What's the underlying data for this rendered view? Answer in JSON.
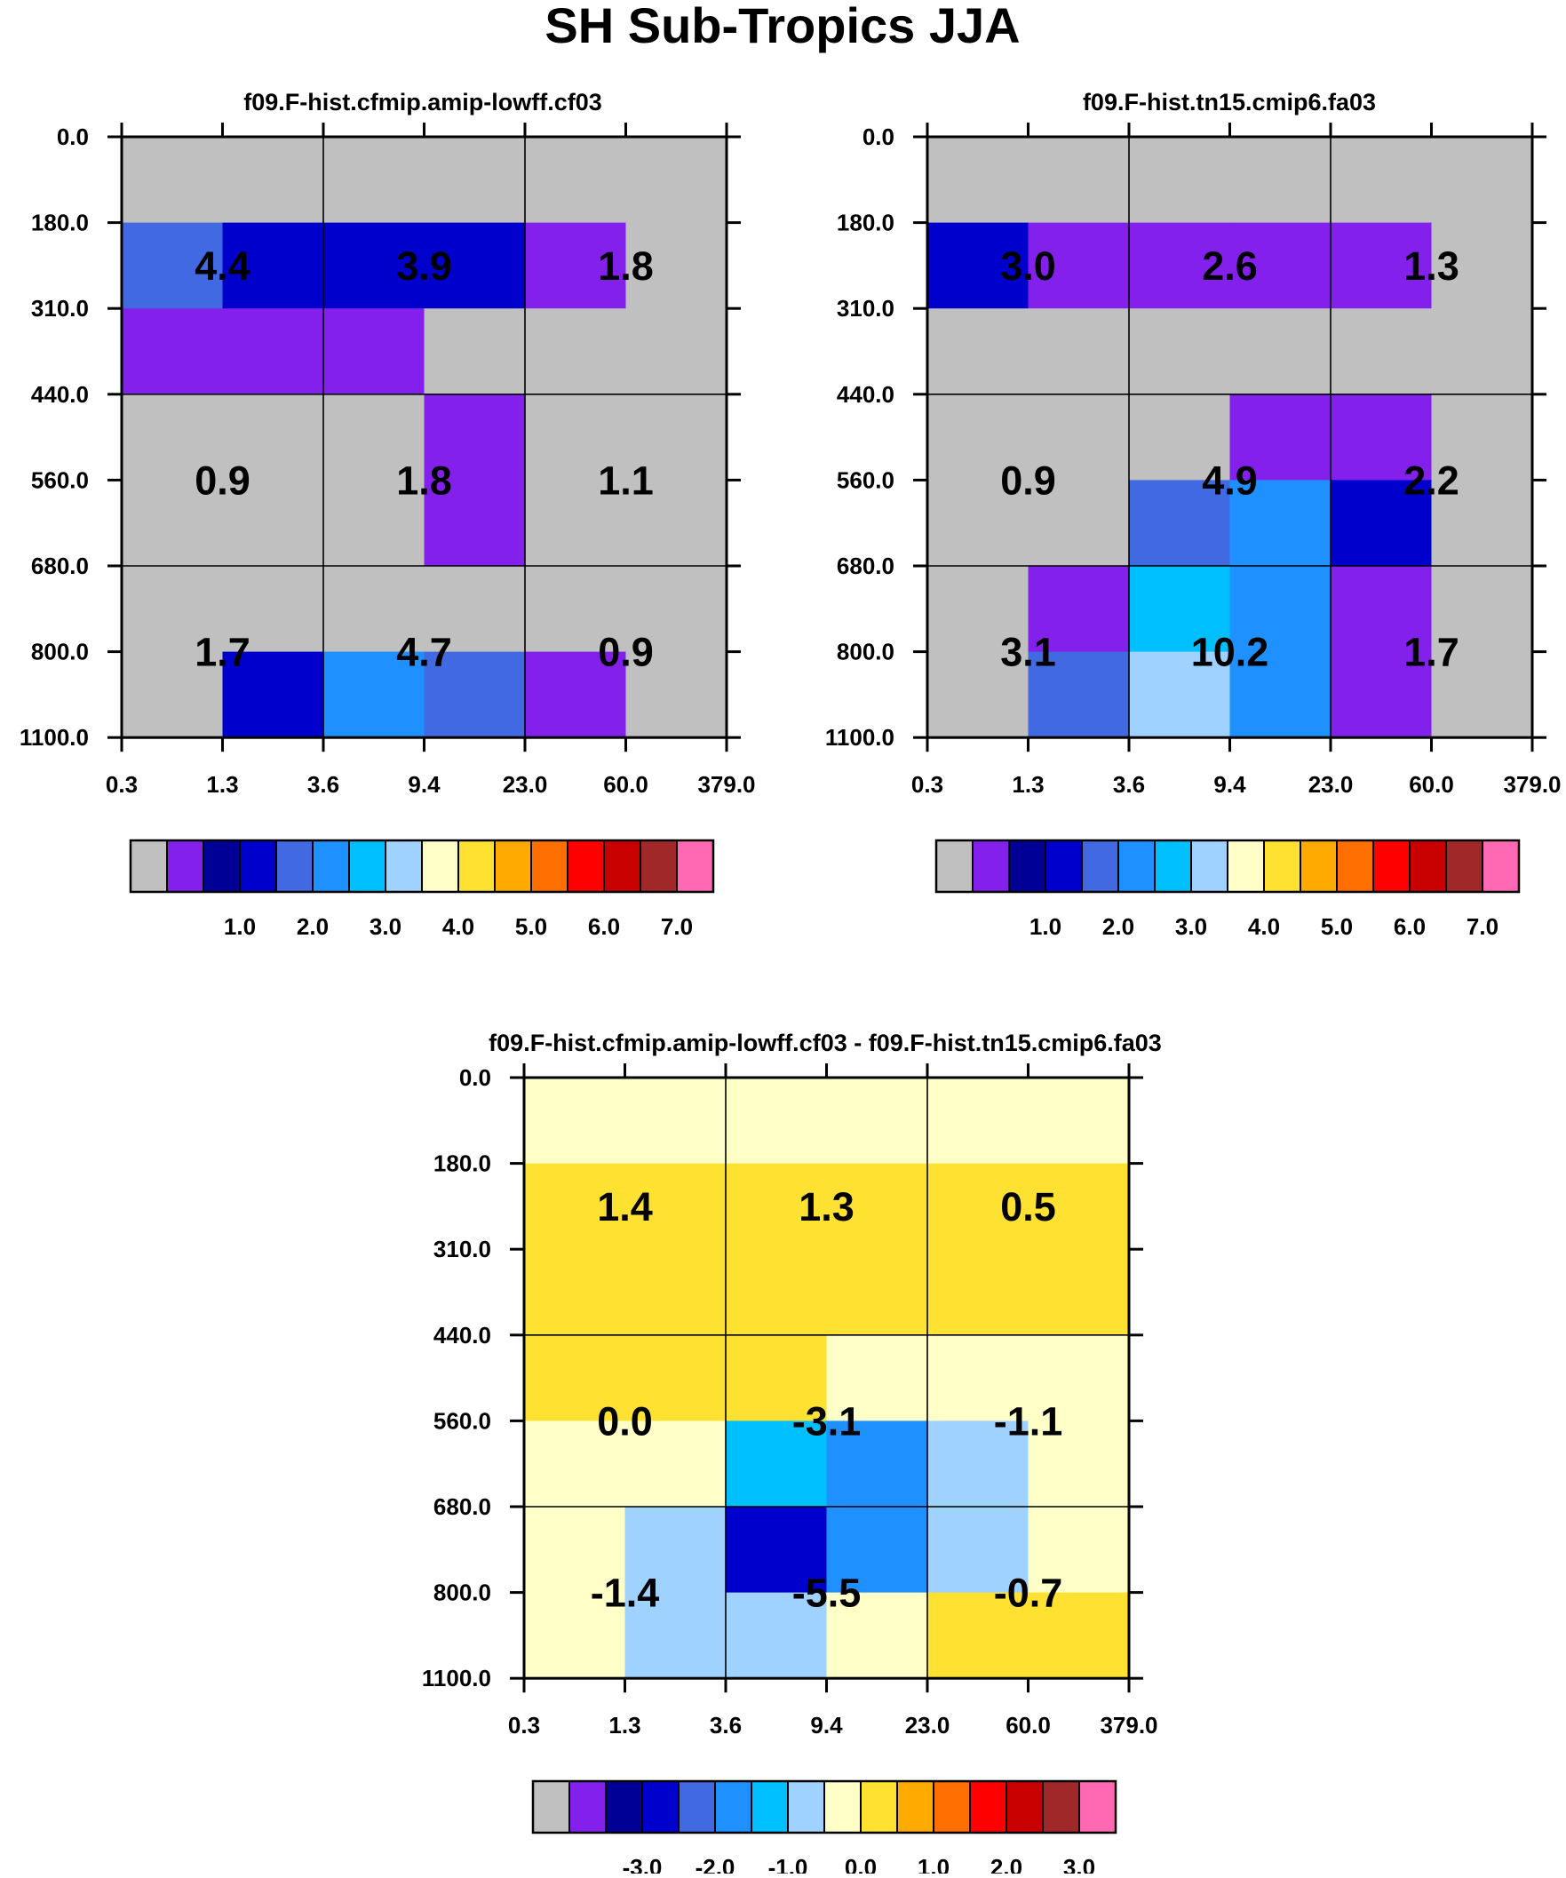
{
  "page": {
    "title": "SH Sub-Tropics JJA"
  },
  "chart_data": [
    {
      "type": "heatmap",
      "title": "f09.F-hist.cfmip.amip-lowff.cf03",
      "x_ticks": [
        "0.3",
        "1.3",
        "3.6",
        "9.4",
        "23.0",
        "60.0",
        "379.0"
      ],
      "y_ticks": [
        "0.0",
        "180.0",
        "310.0",
        "440.0",
        "560.0",
        "680.0",
        "800.0",
        "1100.0"
      ],
      "cells": [
        [
          0,
          0,
          0,
          0,
          0,
          0
        ],
        [
          4,
          3,
          3,
          3,
          1,
          0
        ],
        [
          1,
          1,
          1,
          0,
          0,
          0
        ],
        [
          0,
          0,
          0,
          1,
          0,
          0
        ],
        [
          0,
          0,
          0,
          1,
          0,
          0
        ],
        [
          0,
          0,
          0,
          0,
          0,
          0
        ],
        [
          0,
          3,
          5,
          4,
          1,
          0
        ]
      ],
      "block_labels": [
        [
          "4.4",
          "3.9",
          "1.8"
        ],
        [
          "0.9",
          "1.8",
          "1.1"
        ],
        [
          "1.7",
          "4.7",
          "0.9"
        ]
      ],
      "colorbar_labels": [
        "1.0",
        "2.0",
        "3.0",
        "4.0",
        "5.0",
        "6.0",
        "7.0"
      ]
    },
    {
      "type": "heatmap",
      "title": "f09.F-hist.tn15.cmip6.fa03",
      "x_ticks": [
        "0.3",
        "1.3",
        "3.6",
        "9.4",
        "23.0",
        "60.0",
        "379.0"
      ],
      "y_ticks": [
        "0.0",
        "180.0",
        "310.0",
        "440.0",
        "560.0",
        "680.0",
        "800.0",
        "1100.0"
      ],
      "cells": [
        [
          0,
          0,
          0,
          0,
          0,
          0
        ],
        [
          3,
          1,
          1,
          1,
          1,
          0
        ],
        [
          0,
          0,
          0,
          0,
          0,
          0
        ],
        [
          0,
          0,
          0,
          1,
          1,
          0
        ],
        [
          0,
          0,
          4,
          5,
          3,
          0
        ],
        [
          0,
          1,
          6,
          5,
          1,
          0
        ],
        [
          0,
          4,
          7,
          5,
          1,
          0
        ]
      ],
      "block_labels": [
        [
          "3.0",
          "2.6",
          "1.3"
        ],
        [
          "0.9",
          "4.9",
          "2.2"
        ],
        [
          "3.1",
          "10.2",
          "1.7"
        ]
      ],
      "colorbar_labels": [
        "1.0",
        "2.0",
        "3.0",
        "4.0",
        "5.0",
        "6.0",
        "7.0"
      ]
    },
    {
      "type": "heatmap",
      "title": "f09.F-hist.cfmip.amip-lowff.cf03 - f09.F-hist.tn15.cmip6.fa03",
      "x_ticks": [
        "0.3",
        "1.3",
        "3.6",
        "9.4",
        "23.0",
        "60.0",
        "379.0"
      ],
      "y_ticks": [
        "0.0",
        "180.0",
        "310.0",
        "440.0",
        "560.0",
        "680.0",
        "800.0",
        "1100.0"
      ],
      "cells": [
        [
          8,
          8,
          8,
          8,
          8,
          8
        ],
        [
          9,
          9,
          9,
          9,
          9,
          9
        ],
        [
          9,
          9,
          9,
          9,
          9,
          9
        ],
        [
          9,
          9,
          9,
          8,
          8,
          8
        ],
        [
          8,
          8,
          6,
          5,
          7,
          8
        ],
        [
          8,
          7,
          3,
          5,
          7,
          8
        ],
        [
          8,
          7,
          7,
          8,
          9,
          9
        ]
      ],
      "block_labels": [
        [
          "1.4",
          "1.3",
          "0.5"
        ],
        [
          "0.0",
          "-3.1",
          "-1.1"
        ],
        [
          "-1.4",
          "-5.5",
          "-0.7"
        ]
      ],
      "colorbar_labels": [
        "-3.0",
        "-2.0",
        "-1.0",
        "0.0",
        "1.0",
        "2.0",
        "3.0"
      ]
    }
  ],
  "palette": [
    "#c0c0c0",
    "#8320ec",
    "#000096",
    "#0000cd",
    "#4169e1",
    "#1e90ff",
    "#00bfff",
    "#a0d2ff",
    "#ffffc8",
    "#ffe132",
    "#ffaa00",
    "#ff6e00",
    "#ff0000",
    "#c80000",
    "#a02828",
    "#ff69b4"
  ]
}
